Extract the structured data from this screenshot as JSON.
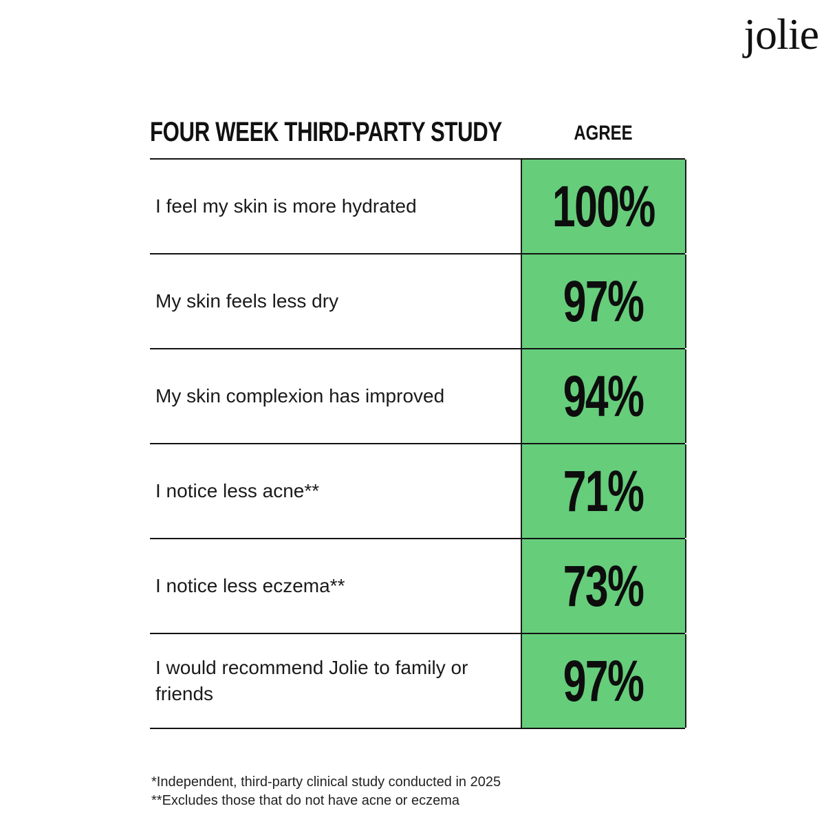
{
  "brand": {
    "logo_text": "jolie"
  },
  "table": {
    "heading": "FOUR WEEK THIRD-PARTY STUDY",
    "value_header": "AGREE",
    "highlight_color": "#66cd7b",
    "rows": [
      {
        "statement": "I feel my skin is more hydrated",
        "value": "100%"
      },
      {
        "statement": "My skin feels less dry",
        "value": "97%"
      },
      {
        "statement": "My skin complexion has improved",
        "value": "94%"
      },
      {
        "statement": "I notice less acne**",
        "value": "71%"
      },
      {
        "statement": "I notice less eczema**",
        "value": "73%"
      },
      {
        "statement": "I would recommend Jolie to family or friends",
        "value": "97%"
      }
    ]
  },
  "footnotes": [
    "*Independent, third-party clinical study conducted in 2025",
    "**Excludes those that do not have acne or eczema"
  ]
}
